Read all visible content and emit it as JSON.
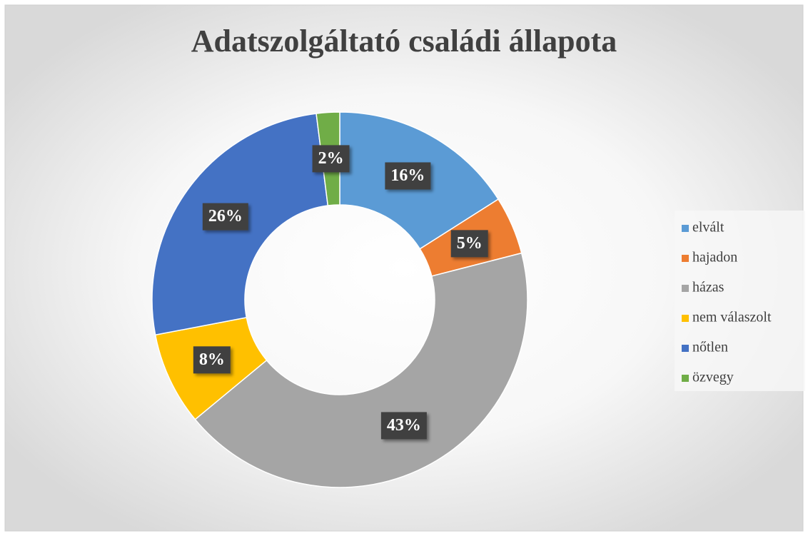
{
  "chart_data": {
    "type": "donut",
    "title": "Adatszolgáltató családi állapota",
    "categories": [
      "elvált",
      "hajadon",
      "házas",
      "nem válaszolt",
      "nőtlen",
      "özvegy"
    ],
    "values": [
      16,
      5,
      43,
      8,
      26,
      2
    ],
    "value_labels": [
      "16%",
      "5%",
      "43%",
      "8%",
      "26%",
      "2%"
    ],
    "colors": [
      "#5b9bd5",
      "#ed7d31",
      "#a5a5a5",
      "#ffc000",
      "#4472c4",
      "#70ad47"
    ],
    "legend": "right"
  }
}
